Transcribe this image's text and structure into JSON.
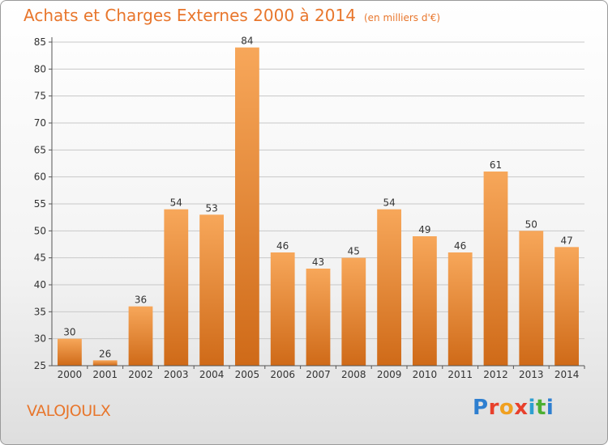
{
  "title": "Achats et Charges Externes 2000 à 2014",
  "unit": "(en milliers d'€)",
  "commune": "VALOJOULX",
  "logo": [
    "P",
    "r",
    "o",
    "x",
    "i",
    "t",
    "i"
  ],
  "colors": {
    "bar_top": "#f7a75a",
    "bar_bottom": "#cf6a18",
    "title": "#e8762c",
    "grid": "#c8c8c8"
  },
  "chart_data": {
    "type": "bar",
    "categories": [
      "2000",
      "2001",
      "2002",
      "2003",
      "2004",
      "2005",
      "2006",
      "2007",
      "2008",
      "2009",
      "2010",
      "2011",
      "2012",
      "2013",
      "2014"
    ],
    "values": [
      30,
      26,
      36,
      54,
      53,
      84,
      46,
      43,
      45,
      54,
      49,
      46,
      61,
      50,
      47
    ],
    "ylim": [
      25,
      85
    ],
    "yticks": [
      25,
      30,
      35,
      40,
      45,
      50,
      55,
      60,
      65,
      70,
      75,
      80,
      85
    ],
    "grid": true,
    "legend": "none"
  }
}
